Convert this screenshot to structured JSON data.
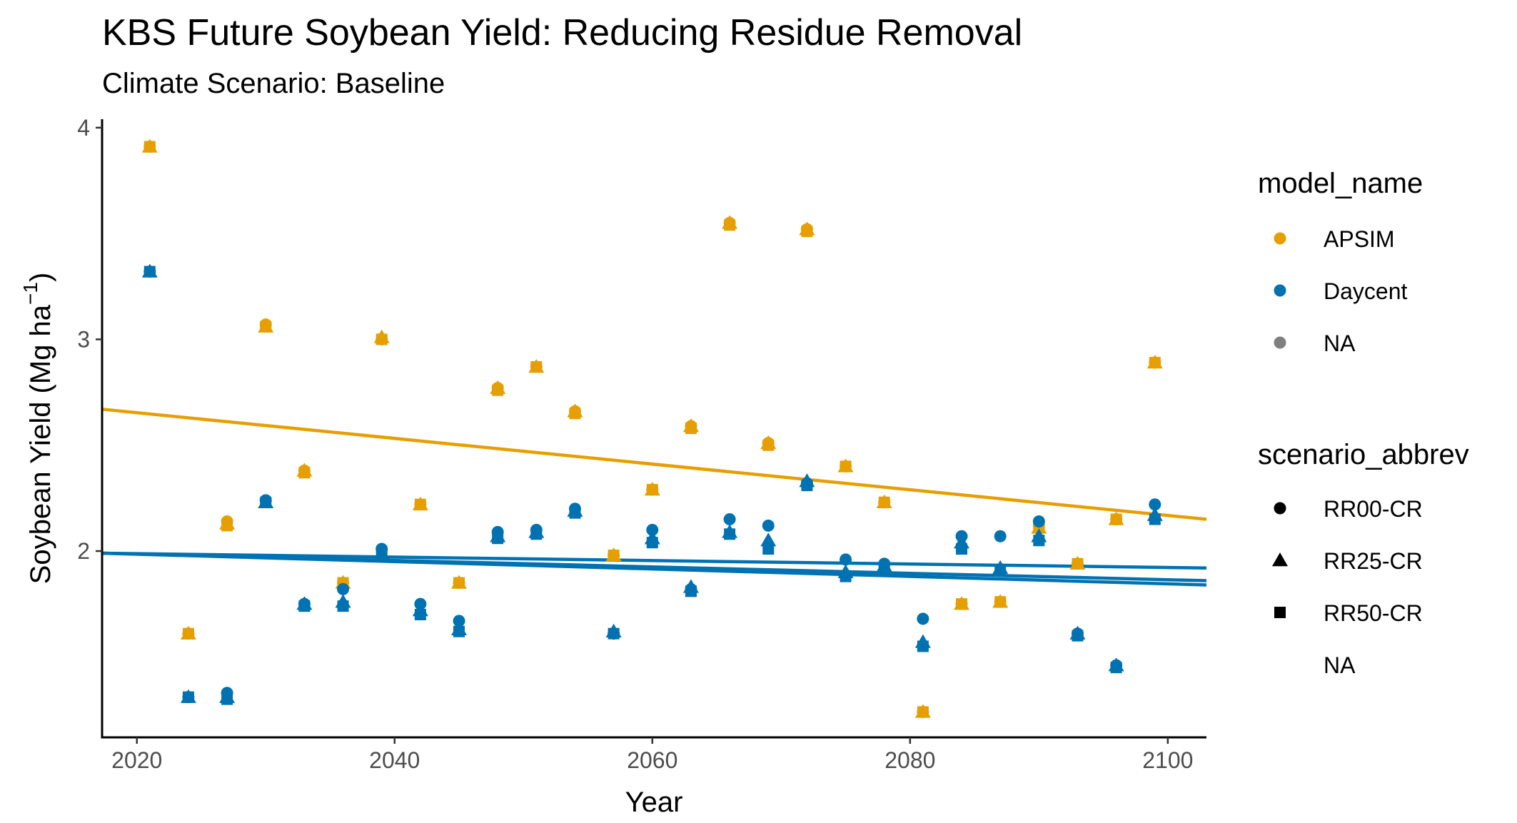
{
  "chart_data": {
    "type": "scatter",
    "title": "KBS Future Soybean Yield: Reducing Residue Removal",
    "subtitle": "Climate Scenario: Baseline",
    "xlabel": "Year",
    "ylabel_main": "Soybean Yield (Mg ha",
    "ylabel_sup": "−1",
    "ylabel_close": ")",
    "xlim": [
      2017.3,
      2103
    ],
    "ylim": [
      1.12,
      4.04
    ],
    "x_ticks": [
      2020,
      2040,
      2060,
      2080,
      2100
    ],
    "y_ticks": [
      2,
      3,
      4
    ],
    "colors": {
      "APSIM": "#E69F00",
      "Daycent": "#0072B2",
      "NA": "#7F7F7F"
    },
    "legend_color": {
      "title": "model_name",
      "entries": [
        {
          "label": "APSIM",
          "color": "#E69F00"
        },
        {
          "label": "Daycent",
          "color": "#0072B2"
        },
        {
          "label": "NA",
          "color": "#7F7F7F"
        }
      ]
    },
    "legend_shape": {
      "title": "scenario_abbrev",
      "entries": [
        {
          "label": "RR00-CR",
          "shape": "circle"
        },
        {
          "label": "RR25-CR",
          "shape": "triangle"
        },
        {
          "label": "RR50-CR",
          "shape": "square"
        },
        {
          "label": "NA",
          "shape": "none"
        }
      ]
    },
    "trend_lines": [
      {
        "model": "APSIM",
        "scenario": "all",
        "x": [
          2017.3,
          2103
        ],
        "y": [
          2.67,
          2.15
        ]
      },
      {
        "model": "Daycent",
        "scenario": "RR00-CR",
        "x": [
          2017.3,
          2103
        ],
        "y": [
          1.99,
          1.92
        ]
      },
      {
        "model": "Daycent",
        "scenario": "RR25-CR",
        "x": [
          2017.3,
          2103
        ],
        "y": [
          1.99,
          1.86
        ]
      },
      {
        "model": "Daycent",
        "scenario": "RR50-CR",
        "x": [
          2017.3,
          2103
        ],
        "y": [
          1.99,
          1.84
        ]
      }
    ],
    "series": [
      {
        "model": "APSIM",
        "scenario": "RR00-CR",
        "x": [
          2021,
          2024,
          2027,
          2030,
          2033,
          2036,
          2039,
          2042,
          2045,
          2048,
          2051,
          2054,
          2057,
          2060,
          2063,
          2066,
          2069,
          2072,
          2075,
          2078,
          2081,
          2084,
          2087,
          2090,
          2093,
          2096,
          2099
        ],
        "y": [
          3.91,
          1.61,
          2.14,
          3.07,
          2.38,
          1.85,
          3.0,
          2.22,
          1.85,
          2.77,
          2.87,
          2.66,
          1.98,
          2.29,
          2.59,
          3.55,
          2.51,
          3.52,
          2.4,
          2.23,
          1.24,
          1.75,
          1.76,
          2.12,
          1.94,
          2.15,
          2.89
        ]
      },
      {
        "model": "APSIM",
        "scenario": "RR25-CR",
        "x": [
          2021,
          2024,
          2027,
          2030,
          2033,
          2036,
          2039,
          2042,
          2045,
          2048,
          2051,
          2054,
          2057,
          2060,
          2063,
          2066,
          2069,
          2072,
          2075,
          2078,
          2081,
          2084,
          2087,
          2090,
          2093,
          2096,
          2099
        ],
        "y": [
          3.91,
          1.61,
          2.13,
          3.06,
          2.38,
          1.85,
          3.01,
          2.22,
          1.85,
          2.77,
          2.87,
          2.66,
          1.98,
          2.29,
          2.59,
          3.55,
          2.51,
          3.52,
          2.4,
          2.23,
          1.24,
          1.75,
          1.76,
          2.11,
          1.94,
          2.15,
          2.89
        ]
      },
      {
        "model": "APSIM",
        "scenario": "RR50-CR",
        "x": [
          2021,
          2024,
          2027,
          2030,
          2033,
          2036,
          2039,
          2042,
          2045,
          2048,
          2051,
          2054,
          2057,
          2060,
          2063,
          2066,
          2069,
          2072,
          2075,
          2078,
          2081,
          2084,
          2087,
          2090,
          2093,
          2096,
          2099
        ],
        "y": [
          3.91,
          1.61,
          2.12,
          3.06,
          2.37,
          1.85,
          3.0,
          2.22,
          1.85,
          2.76,
          2.87,
          2.65,
          1.98,
          2.29,
          2.58,
          3.54,
          2.5,
          3.51,
          2.4,
          2.23,
          1.24,
          1.75,
          1.76,
          2.11,
          1.94,
          2.15,
          2.89
        ]
      },
      {
        "model": "Daycent",
        "scenario": "RR00-CR",
        "x": [
          2021,
          2024,
          2027,
          2030,
          2033,
          2036,
          2039,
          2042,
          2045,
          2048,
          2051,
          2054,
          2057,
          2060,
          2063,
          2066,
          2069,
          2072,
          2075,
          2078,
          2081,
          2084,
          2087,
          2090,
          2093,
          2096,
          2099
        ],
        "y": [
          3.32,
          1.31,
          1.33,
          2.24,
          1.75,
          1.82,
          2.01,
          1.75,
          1.67,
          2.09,
          2.1,
          2.2,
          1.61,
          2.1,
          1.82,
          2.15,
          2.12,
          2.32,
          1.96,
          1.94,
          1.68,
          2.07,
          2.07,
          2.14,
          1.61,
          1.46,
          2.22
        ]
      },
      {
        "model": "Daycent",
        "scenario": "RR25-CR",
        "x": [
          2021,
          2024,
          2027,
          2030,
          2033,
          2036,
          2039,
          2042,
          2045,
          2048,
          2051,
          2054,
          2057,
          2060,
          2063,
          2066,
          2069,
          2072,
          2075,
          2078,
          2081,
          2084,
          2087,
          2090,
          2093,
          2096,
          2099
        ],
        "y": [
          3.32,
          1.31,
          1.31,
          2.23,
          1.75,
          1.76,
          1.99,
          1.72,
          1.63,
          2.07,
          2.09,
          2.19,
          1.62,
          2.06,
          1.83,
          2.09,
          2.05,
          2.33,
          1.9,
          1.93,
          1.57,
          2.04,
          1.92,
          2.07,
          1.61,
          1.46,
          2.17
        ]
      },
      {
        "model": "Daycent",
        "scenario": "RR50-CR",
        "x": [
          2021,
          2024,
          2027,
          2030,
          2033,
          2036,
          2039,
          2042,
          2045,
          2048,
          2051,
          2054,
          2057,
          2060,
          2063,
          2066,
          2069,
          2072,
          2075,
          2078,
          2081,
          2084,
          2087,
          2090,
          2093,
          2096,
          2099
        ],
        "y": [
          3.32,
          1.31,
          1.3,
          2.23,
          1.74,
          1.74,
          1.98,
          1.7,
          1.62,
          2.06,
          2.08,
          2.18,
          1.61,
          2.04,
          1.81,
          2.08,
          2.01,
          2.31,
          1.88,
          1.91,
          1.55,
          2.01,
          1.91,
          2.05,
          1.6,
          1.45,
          2.15
        ]
      }
    ]
  }
}
